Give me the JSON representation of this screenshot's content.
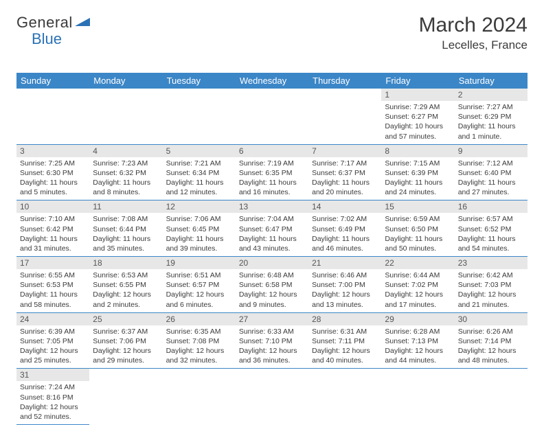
{
  "brand": {
    "part1": "General",
    "part2": "Blue",
    "tri_color": "#2a72b5"
  },
  "title": "March 2024",
  "location": "Lecelles, France",
  "colors": {
    "header_bg": "#3b86c7",
    "header_fg": "#ffffff",
    "daynum_bg": "#e7e7e7",
    "border": "#3b86c7"
  },
  "weekdays": [
    "Sunday",
    "Monday",
    "Tuesday",
    "Wednesday",
    "Thursday",
    "Friday",
    "Saturday"
  ],
  "weeks": [
    [
      null,
      null,
      null,
      null,
      null,
      {
        "n": "1",
        "sr": "7:29 AM",
        "ss": "6:27 PM",
        "dl": "10 hours and 57 minutes."
      },
      {
        "n": "2",
        "sr": "7:27 AM",
        "ss": "6:29 PM",
        "dl": "11 hours and 1 minute."
      }
    ],
    [
      {
        "n": "3",
        "sr": "7:25 AM",
        "ss": "6:30 PM",
        "dl": "11 hours and 5 minutes."
      },
      {
        "n": "4",
        "sr": "7:23 AM",
        "ss": "6:32 PM",
        "dl": "11 hours and 8 minutes."
      },
      {
        "n": "5",
        "sr": "7:21 AM",
        "ss": "6:34 PM",
        "dl": "11 hours and 12 minutes."
      },
      {
        "n": "6",
        "sr": "7:19 AM",
        "ss": "6:35 PM",
        "dl": "11 hours and 16 minutes."
      },
      {
        "n": "7",
        "sr": "7:17 AM",
        "ss": "6:37 PM",
        "dl": "11 hours and 20 minutes."
      },
      {
        "n": "8",
        "sr": "7:15 AM",
        "ss": "6:39 PM",
        "dl": "11 hours and 24 minutes."
      },
      {
        "n": "9",
        "sr": "7:12 AM",
        "ss": "6:40 PM",
        "dl": "11 hours and 27 minutes."
      }
    ],
    [
      {
        "n": "10",
        "sr": "7:10 AM",
        "ss": "6:42 PM",
        "dl": "11 hours and 31 minutes."
      },
      {
        "n": "11",
        "sr": "7:08 AM",
        "ss": "6:44 PM",
        "dl": "11 hours and 35 minutes."
      },
      {
        "n": "12",
        "sr": "7:06 AM",
        "ss": "6:45 PM",
        "dl": "11 hours and 39 minutes."
      },
      {
        "n": "13",
        "sr": "7:04 AM",
        "ss": "6:47 PM",
        "dl": "11 hours and 43 minutes."
      },
      {
        "n": "14",
        "sr": "7:02 AM",
        "ss": "6:49 PM",
        "dl": "11 hours and 46 minutes."
      },
      {
        "n": "15",
        "sr": "6:59 AM",
        "ss": "6:50 PM",
        "dl": "11 hours and 50 minutes."
      },
      {
        "n": "16",
        "sr": "6:57 AM",
        "ss": "6:52 PM",
        "dl": "11 hours and 54 minutes."
      }
    ],
    [
      {
        "n": "17",
        "sr": "6:55 AM",
        "ss": "6:53 PM",
        "dl": "11 hours and 58 minutes."
      },
      {
        "n": "18",
        "sr": "6:53 AM",
        "ss": "6:55 PM",
        "dl": "12 hours and 2 minutes."
      },
      {
        "n": "19",
        "sr": "6:51 AM",
        "ss": "6:57 PM",
        "dl": "12 hours and 6 minutes."
      },
      {
        "n": "20",
        "sr": "6:48 AM",
        "ss": "6:58 PM",
        "dl": "12 hours and 9 minutes."
      },
      {
        "n": "21",
        "sr": "6:46 AM",
        "ss": "7:00 PM",
        "dl": "12 hours and 13 minutes."
      },
      {
        "n": "22",
        "sr": "6:44 AM",
        "ss": "7:02 PM",
        "dl": "12 hours and 17 minutes."
      },
      {
        "n": "23",
        "sr": "6:42 AM",
        "ss": "7:03 PM",
        "dl": "12 hours and 21 minutes."
      }
    ],
    [
      {
        "n": "24",
        "sr": "6:39 AM",
        "ss": "7:05 PM",
        "dl": "12 hours and 25 minutes."
      },
      {
        "n": "25",
        "sr": "6:37 AM",
        "ss": "7:06 PM",
        "dl": "12 hours and 29 minutes."
      },
      {
        "n": "26",
        "sr": "6:35 AM",
        "ss": "7:08 PM",
        "dl": "12 hours and 32 minutes."
      },
      {
        "n": "27",
        "sr": "6:33 AM",
        "ss": "7:10 PM",
        "dl": "12 hours and 36 minutes."
      },
      {
        "n": "28",
        "sr": "6:31 AM",
        "ss": "7:11 PM",
        "dl": "12 hours and 40 minutes."
      },
      {
        "n": "29",
        "sr": "6:28 AM",
        "ss": "7:13 PM",
        "dl": "12 hours and 44 minutes."
      },
      {
        "n": "30",
        "sr": "6:26 AM",
        "ss": "7:14 PM",
        "dl": "12 hours and 48 minutes."
      }
    ],
    [
      {
        "n": "31",
        "sr": "7:24 AM",
        "ss": "8:16 PM",
        "dl": "12 hours and 52 minutes."
      },
      null,
      null,
      null,
      null,
      null,
      null
    ]
  ],
  "labels": {
    "sunrise": "Sunrise:",
    "sunset": "Sunset:",
    "daylight": "Daylight:"
  }
}
